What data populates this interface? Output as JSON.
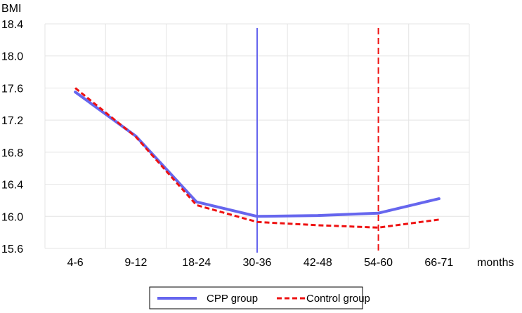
{
  "chart_data": {
    "type": "line",
    "ylabel": "BMI",
    "xlabel": "months",
    "categories": [
      "4-6",
      "9-12",
      "18-24",
      "30-36",
      "42-48",
      "54-60",
      "66-71"
    ],
    "ylim": [
      15.6,
      18.4
    ],
    "yticks": [
      "18.4",
      "18.0",
      "17.6",
      "17.2",
      "16.8",
      "16.4",
      "16.0",
      "15.6"
    ],
    "grid": true,
    "legend_position": "bottom",
    "series": [
      {
        "name": "CPP group",
        "values": [
          17.55,
          17.0,
          16.18,
          16.0,
          16.01,
          16.04,
          16.22
        ],
        "color": "#6666ee",
        "style": "solid"
      },
      {
        "name": "Control group",
        "values": [
          17.6,
          16.99,
          16.14,
          15.93,
          15.89,
          15.86,
          15.96
        ],
        "color": "#ee1111",
        "style": "dashed"
      }
    ],
    "reference_lines": [
      {
        "category": "30-36",
        "color": "#6666ee",
        "style": "solid"
      },
      {
        "category": "54-60",
        "color": "#ee1111",
        "style": "dashed"
      }
    ]
  }
}
